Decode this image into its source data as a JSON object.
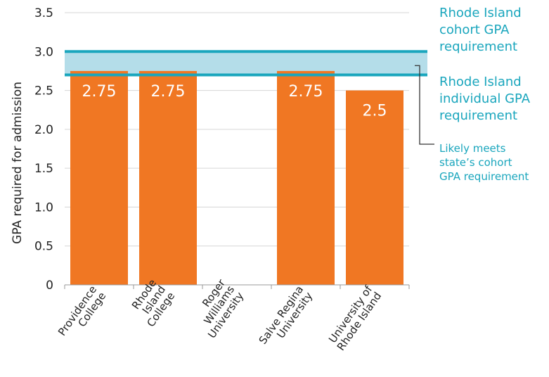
{
  "chart_data": {
    "type": "bar",
    "categories": [
      [
        "Providence",
        "College"
      ],
      [
        "Rhode",
        "Island",
        "College"
      ],
      [
        "Roger",
        "Williams",
        "University"
      ],
      [
        "Salve Regina",
        "University"
      ],
      [
        "University of",
        "Rhode Island"
      ]
    ],
    "values": [
      2.75,
      2.75,
      null,
      2.75,
      2.5
    ],
    "data_labels": [
      "2.75",
      "2.75",
      "",
      "2.75",
      "2.5"
    ],
    "ylabel": "GPA required for admission",
    "ylim": [
      0,
      3.5
    ],
    "yticks": [
      0,
      0.5,
      1.0,
      1.5,
      2.0,
      2.5,
      3.0,
      3.5
    ],
    "ytick_labels": [
      "0",
      "0.5",
      "1.0",
      "1.5",
      "2.0",
      "2.5",
      "3.0",
      "3.5"
    ],
    "grid": true,
    "reference_lines": {
      "cohort": 3.0,
      "individual": 2.7
    },
    "annotations": {
      "cohort": [
        "Rhode Island",
        "cohort GPA",
        "requirement"
      ],
      "individual": [
        "Rhode Island",
        "individual GPA",
        "requirement"
      ],
      "band": [
        "Likely meets",
        "state’s cohort",
        "GPA requirement"
      ]
    },
    "colors": {
      "bar": "#f07723",
      "line": "#1aa6bd",
      "band": "#b4dde9",
      "grid": "#d6d6d6",
      "text": "#222222",
      "annotation": "#1aa6bd",
      "bracket": "#333333"
    }
  }
}
